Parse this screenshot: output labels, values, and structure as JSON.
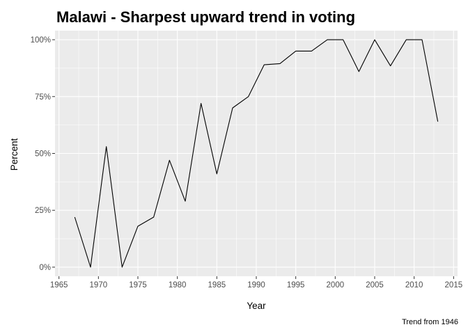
{
  "chart_data": {
    "type": "line",
    "title": "Malawi - Sharpest upward trend in voting",
    "xlabel": "Year",
    "ylabel": "Percent",
    "caption": "Trend from 1946",
    "xlim": [
      1964.5,
      2015.5
    ],
    "ylim": [
      -4,
      104
    ],
    "x_ticks": [
      1965,
      1970,
      1975,
      1980,
      1985,
      1990,
      1995,
      2000,
      2005,
      2010,
      2015
    ],
    "x_tick_labels": [
      "1965",
      "1970",
      "1975",
      "1980",
      "1985",
      "1990",
      "1995",
      "2000",
      "2005",
      "2010",
      "2015"
    ],
    "y_ticks": [
      0,
      25,
      50,
      75,
      100
    ],
    "y_tick_labels": [
      "0%",
      "25%",
      "50%",
      "75%",
      "100%"
    ],
    "grid": true,
    "panel_background": "#ebebeb",
    "line_color": "#000000",
    "series": [
      {
        "x": [
          1967,
          1969,
          1971,
          1973,
          1975,
          1977,
          1979,
          1981,
          1983,
          1985,
          1987,
          1989,
          1991,
          1993,
          1995,
          1997,
          1999,
          2001,
          2003,
          2005,
          2007,
          2009,
          2011,
          2013
        ],
        "values": [
          22,
          0,
          53,
          0,
          18,
          22,
          47,
          29,
          72,
          41,
          70,
          75,
          89,
          89.5,
          95,
          95,
          100,
          100,
          86,
          100,
          88.5,
          100,
          100,
          64
        ]
      }
    ]
  }
}
